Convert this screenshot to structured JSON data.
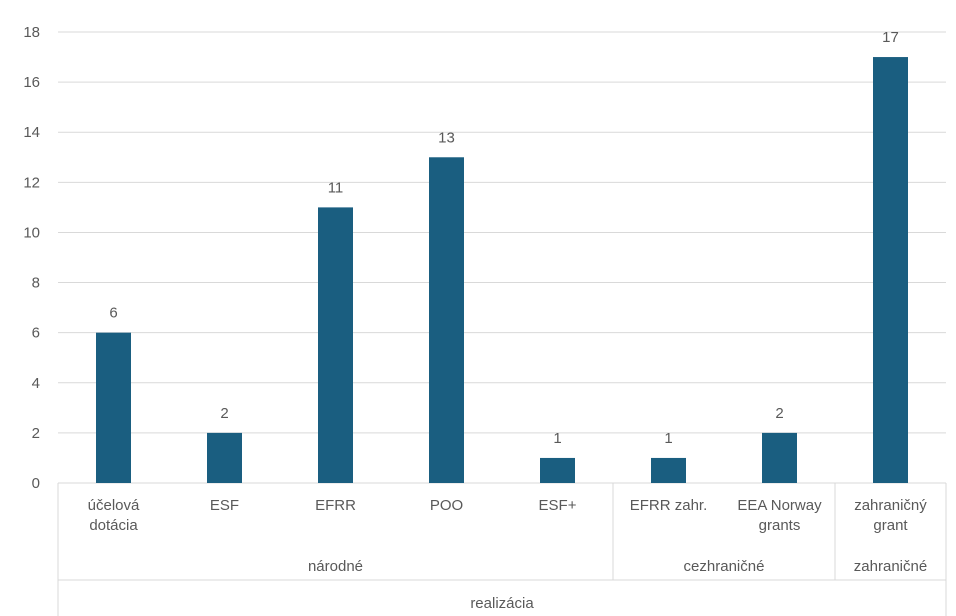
{
  "chart_data": {
    "type": "bar",
    "title": "",
    "xlabel": "",
    "ylabel": "",
    "ylim": [
      0,
      18
    ],
    "yticks": [
      0,
      2,
      4,
      6,
      8,
      10,
      12,
      14,
      16,
      18
    ],
    "grid": true,
    "legend": "none",
    "bar_color": "#1a5e80",
    "categories": [
      "účelová dotácia",
      "ESF",
      "EFRR",
      "POO",
      "ESF+",
      "EFRR zahr.",
      "EEA Norway grants",
      "zahraničný grant"
    ],
    "values": [
      6,
      2,
      11,
      13,
      1,
      1,
      2,
      17
    ],
    "groups_level1": [
      {
        "label": "národné",
        "span": [
          0,
          4
        ]
      },
      {
        "label": "cezhraničné",
        "span": [
          5,
          6
        ]
      },
      {
        "label": "zahraničné",
        "span": [
          7,
          7
        ]
      }
    ],
    "groups_level2": [
      {
        "label": "realizácia",
        "span": [
          0,
          7
        ]
      }
    ]
  }
}
